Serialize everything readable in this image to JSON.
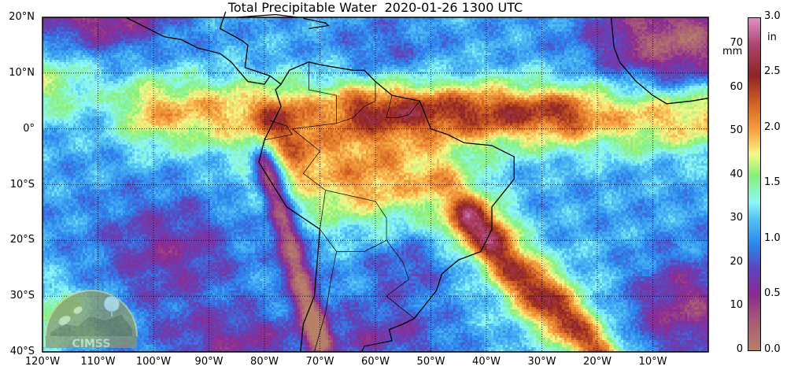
{
  "title": "Total Precipitable Water  2020-01-26 1300 UTC",
  "map": {
    "extent": {
      "lon": [
        -120,
        0
      ],
      "lat": [
        -40,
        20
      ]
    },
    "grid": "dotted",
    "x_ticks": [
      {
        "lon": -120,
        "label": "120°W"
      },
      {
        "lon": -110,
        "label": "110°W"
      },
      {
        "lon": -100,
        "label": "100°W"
      },
      {
        "lon": -90,
        "label": "90°W"
      },
      {
        "lon": -80,
        "label": "80°W"
      },
      {
        "lon": -70,
        "label": "70°W"
      },
      {
        "lon": -60,
        "label": "60°W"
      },
      {
        "lon": -50,
        "label": "50°W"
      },
      {
        "lon": -40,
        "label": "40°W"
      },
      {
        "lon": -30,
        "label": "30°W"
      },
      {
        "lon": -20,
        "label": "20°W"
      },
      {
        "lon": -10,
        "label": "10°W"
      }
    ],
    "y_ticks": [
      {
        "lat": 20,
        "label": "20°N"
      },
      {
        "lat": 10,
        "label": "10°N"
      },
      {
        "lat": 0,
        "label": "0°"
      },
      {
        "lat": -10,
        "label": "10°S"
      },
      {
        "lat": -20,
        "label": "20°S"
      },
      {
        "lat": -30,
        "label": "30°S"
      },
      {
        "lat": -40,
        "label": "40°S"
      }
    ]
  },
  "colorbar": {
    "range_mm": [
      0,
      76
    ],
    "mm_unit": "mm",
    "in_unit": "in",
    "mm_ticks": [
      {
        "v": 0,
        "label": "0"
      },
      {
        "v": 10,
        "label": "10"
      },
      {
        "v": 20,
        "label": "20"
      },
      {
        "v": 30,
        "label": "30"
      },
      {
        "v": 40,
        "label": "40"
      },
      {
        "v": 50,
        "label": "50"
      },
      {
        "v": 60,
        "label": "60"
      },
      {
        "v": 70,
        "label": "70"
      }
    ],
    "in_ticks": [
      {
        "v": 0.0,
        "label": "0.0"
      },
      {
        "v": 0.5,
        "label": "0.5"
      },
      {
        "v": 1.0,
        "label": "1.0"
      },
      {
        "v": 1.5,
        "label": "1.5"
      },
      {
        "v": 2.0,
        "label": "2.0"
      },
      {
        "v": 2.5,
        "label": "2.5"
      },
      {
        "v": 3.0,
        "label": "3.0"
      }
    ],
    "colormap": [
      [
        0,
        "#b88068"
      ],
      [
        7,
        "#a85a78"
      ],
      [
        13,
        "#8c2a92"
      ],
      [
        19,
        "#5a48c0"
      ],
      [
        24,
        "#2c84ee"
      ],
      [
        30,
        "#52c2f4"
      ],
      [
        34,
        "#8ef8f8"
      ],
      [
        40,
        "#86f07a"
      ],
      [
        45,
        "#f6f888"
      ],
      [
        50,
        "#f8a844"
      ],
      [
        56,
        "#d86824"
      ],
      [
        63,
        "#902424"
      ],
      [
        70,
        "#b04472"
      ],
      [
        76,
        "#e090c8"
      ]
    ]
  },
  "logo": {
    "text": "CIMSS"
  }
}
